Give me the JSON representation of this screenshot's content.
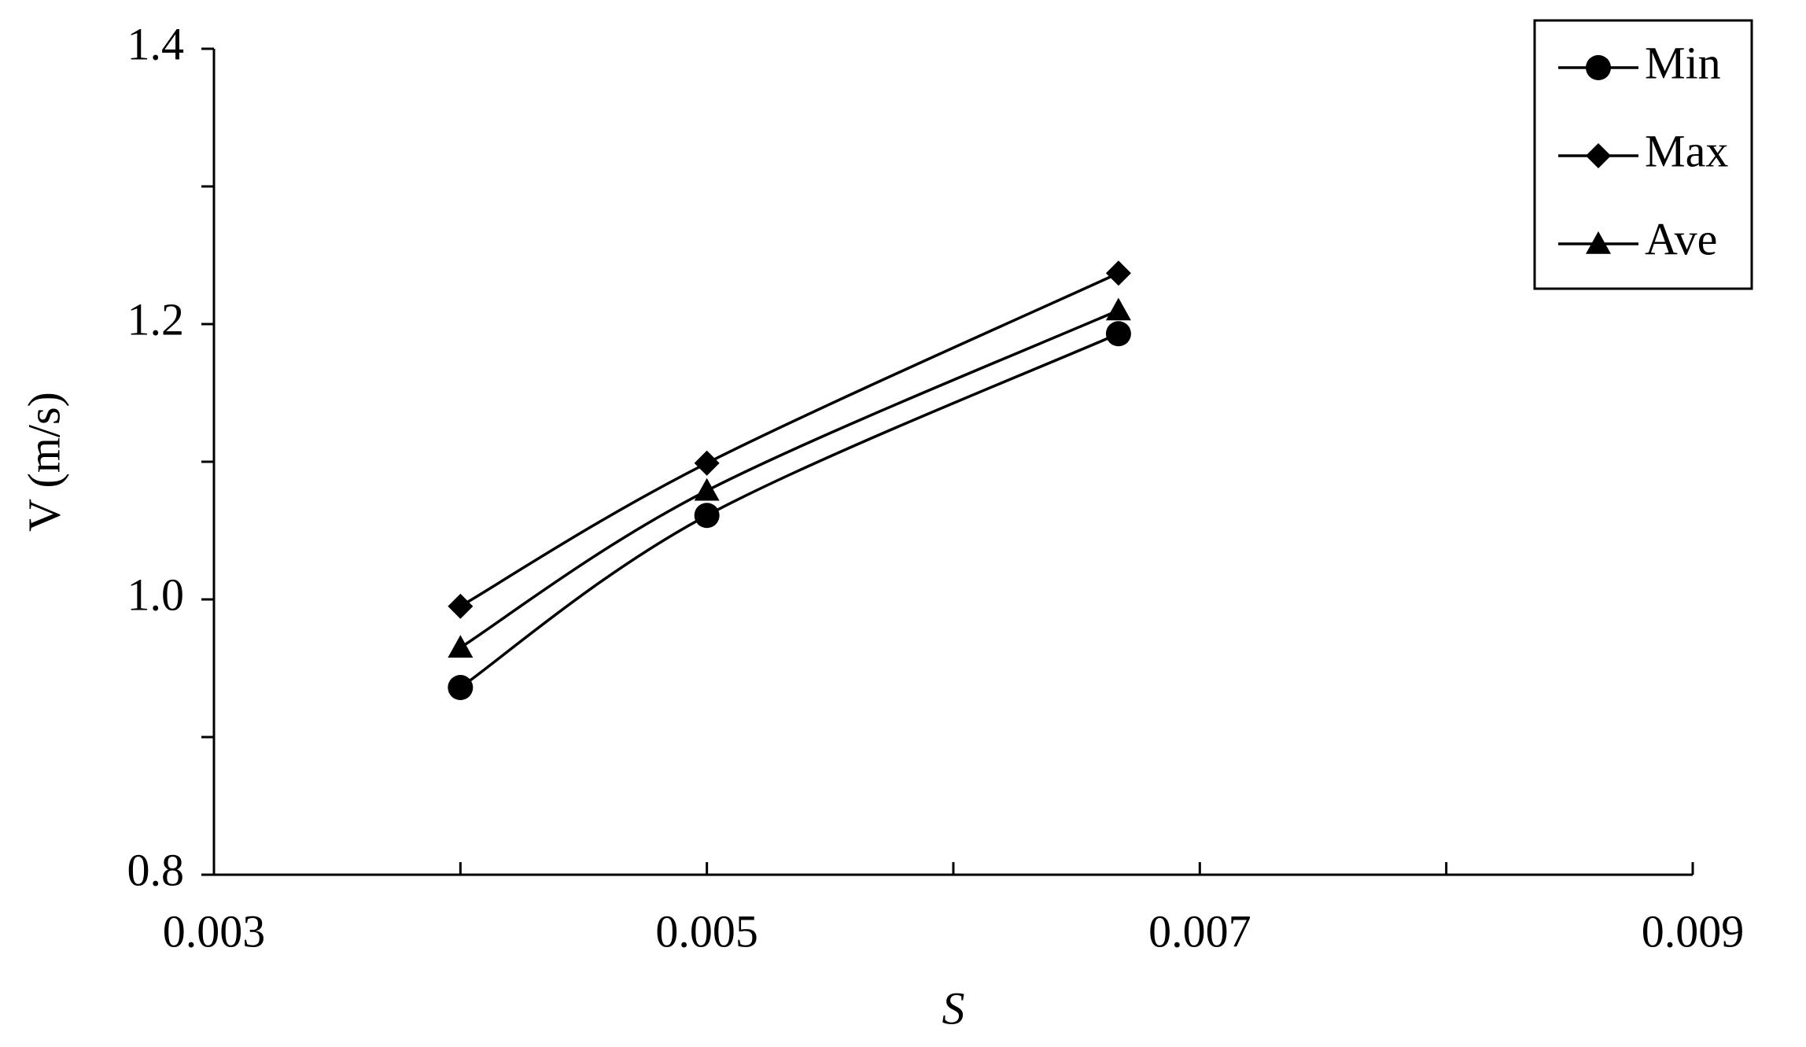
{
  "chart_data": {
    "type": "line",
    "xlabel": "S",
    "ylabel": "V (m/s)",
    "x": [
      0.004,
      0.005,
      0.00667
    ],
    "series": [
      {
        "name": "Min",
        "color": "#000000",
        "marker": "circle",
        "values": [
          0.936,
          1.061,
          1.193
        ]
      },
      {
        "name": "Max",
        "color": "#000000",
        "marker": "diamond",
        "values": [
          0.995,
          1.099,
          1.237
        ]
      },
      {
        "name": "Ave",
        "color": "#000000",
        "marker": "triangle",
        "values": [
          0.965,
          1.079,
          1.21
        ]
      }
    ],
    "xlim": [
      0.003,
      0.009
    ],
    "xticks": [
      0.003,
      0.005,
      0.007,
      0.009
    ],
    "x_minor_ticks": [
      0.004,
      0.006,
      0.008
    ],
    "ylim": [
      0.8,
      1.4
    ],
    "yticks": [
      0.8,
      {
        "value": 1,
        "label": "1.0"
      },
      1.2,
      1.4
    ],
    "y_minor_ticks": [
      0.9,
      1.1,
      1.3
    ],
    "grid": false,
    "smooth": true,
    "legend": "upper right"
  }
}
